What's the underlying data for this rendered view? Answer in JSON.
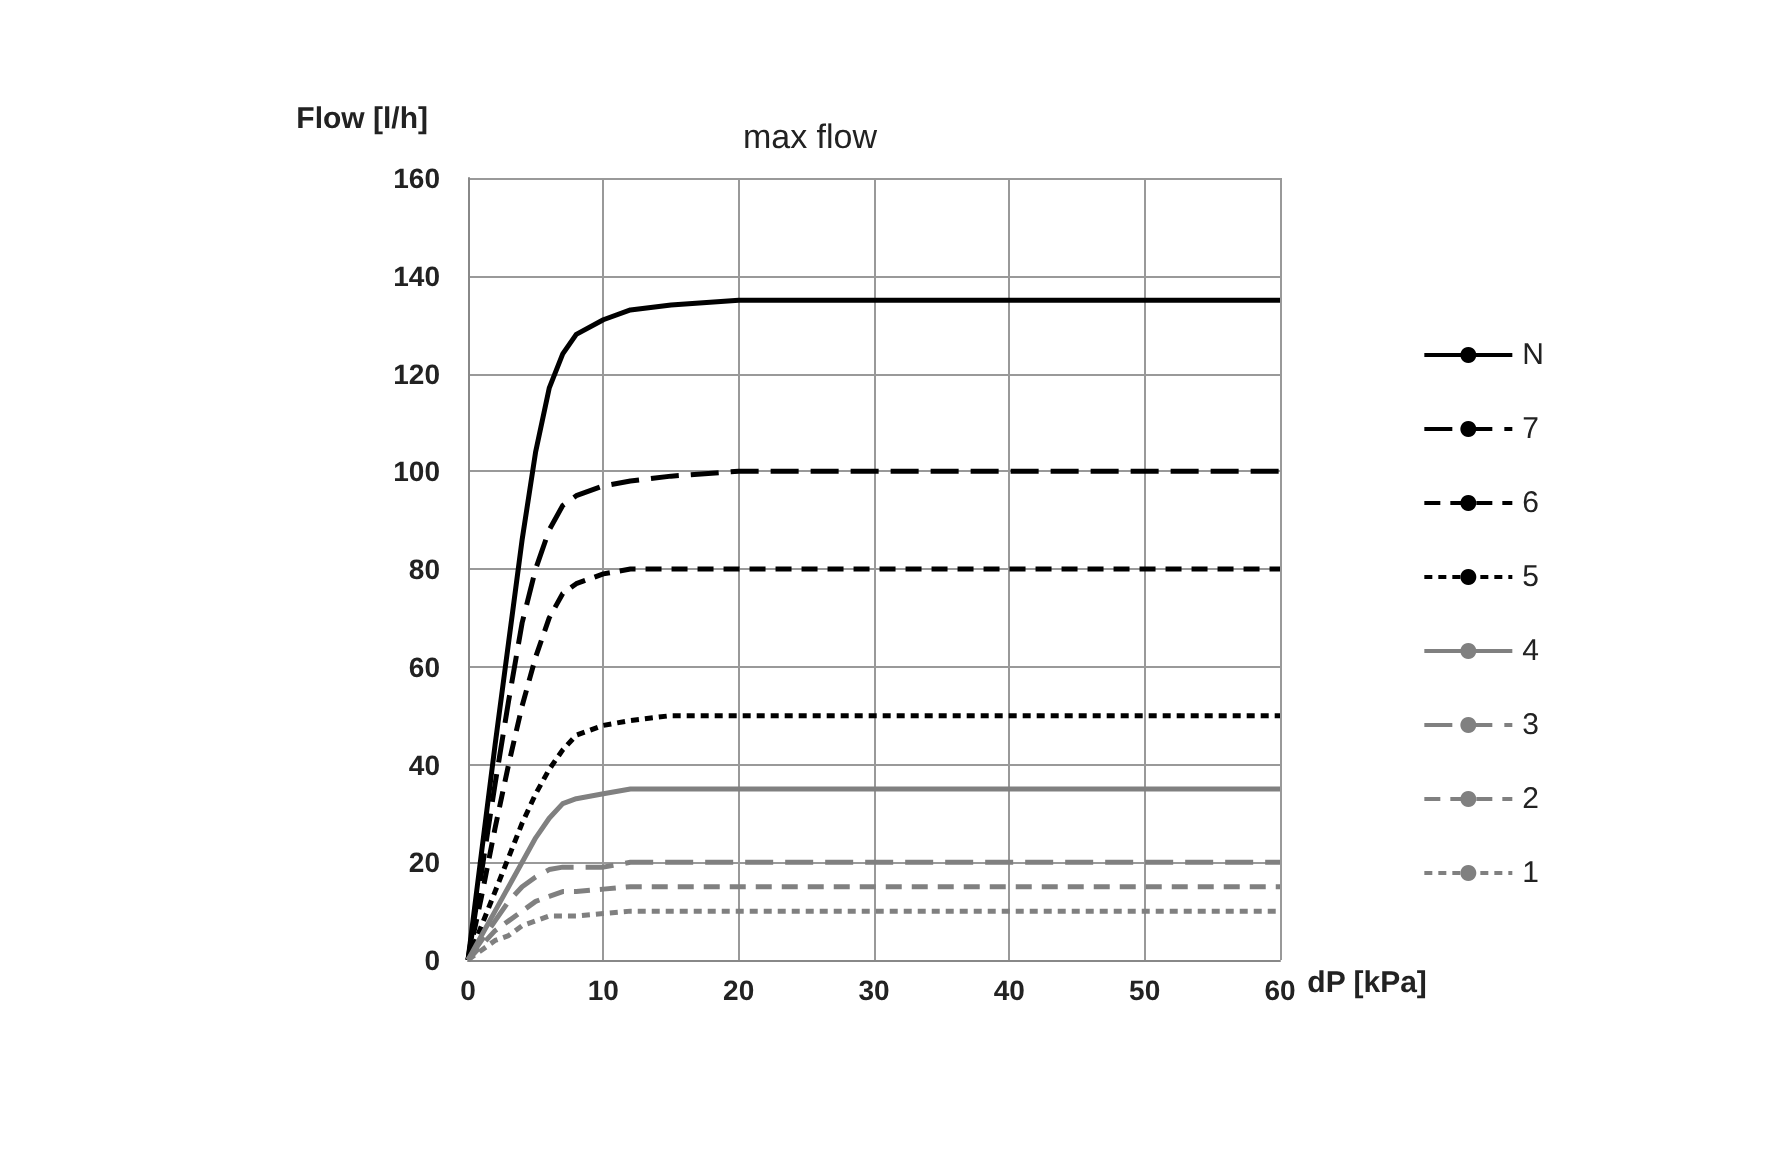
{
  "chart_data": {
    "type": "line",
    "title": "max flow",
    "xlabel": "dP [kPa]",
    "ylabel": "Flow [l/h]",
    "x": [
      0,
      1,
      2,
      3,
      4,
      5,
      6,
      7,
      8,
      10,
      12,
      15,
      20,
      30,
      40,
      50,
      60
    ],
    "xlim": [
      0,
      60
    ],
    "xticks": [
      0,
      10,
      20,
      30,
      40,
      50,
      60
    ],
    "ylim": [
      0,
      160
    ],
    "yticks": [
      0,
      20,
      40,
      60,
      80,
      100,
      120,
      140,
      160
    ],
    "grid": true,
    "legend": "right",
    "marker": "none",
    "series": [
      {
        "name": "N",
        "color": "#000000",
        "line_style": "solid",
        "values": [
          0,
          22,
          44,
          65,
          86,
          104,
          117,
          124,
          128,
          131,
          133,
          134,
          135,
          135,
          135,
          135,
          135
        ]
      },
      {
        "name": "7",
        "color": "#000000",
        "line_style": "dashed",
        "values": [
          0,
          18,
          36,
          53,
          69,
          80,
          88,
          93,
          95,
          97,
          98,
          99,
          100,
          100,
          100,
          100,
          100
        ]
      },
      {
        "name": "6",
        "color": "#000000",
        "line_style": "dashed",
        "values": [
          0,
          13,
          27,
          40,
          52,
          62,
          70,
          75,
          77,
          79,
          80,
          80,
          80,
          80,
          80,
          80,
          80
        ]
      },
      {
        "name": "5",
        "color": "#000000",
        "line_style": "dotted",
        "values": [
          0,
          7,
          14,
          21,
          28,
          34,
          39,
          43,
          46,
          48,
          49,
          50,
          50,
          50,
          50,
          50,
          50
        ]
      },
      {
        "name": "4",
        "color": "#808080",
        "line_style": "solid",
        "values": [
          0,
          5,
          10,
          15,
          20,
          25,
          29,
          32,
          33,
          34,
          35,
          35,
          35,
          35,
          35,
          35,
          35
        ]
      },
      {
        "name": "3",
        "color": "#808080",
        "line_style": "dashed",
        "values": [
          0,
          4,
          8,
          12,
          15,
          17,
          18.5,
          19,
          19,
          19,
          20,
          20,
          20,
          20,
          20,
          20,
          20
        ]
      },
      {
        "name": "2",
        "color": "#808080",
        "line_style": "dashed",
        "values": [
          0,
          3,
          6,
          8,
          10,
          12,
          13,
          14,
          14,
          14.5,
          15,
          15,
          15,
          15,
          15,
          15,
          15
        ]
      },
      {
        "name": "1",
        "color": "#808080",
        "line_style": "dotted",
        "values": [
          0,
          2,
          4,
          5,
          7,
          8,
          9,
          9,
          9,
          9.5,
          10,
          10,
          10,
          10,
          10,
          10,
          10
        ]
      }
    ]
  }
}
